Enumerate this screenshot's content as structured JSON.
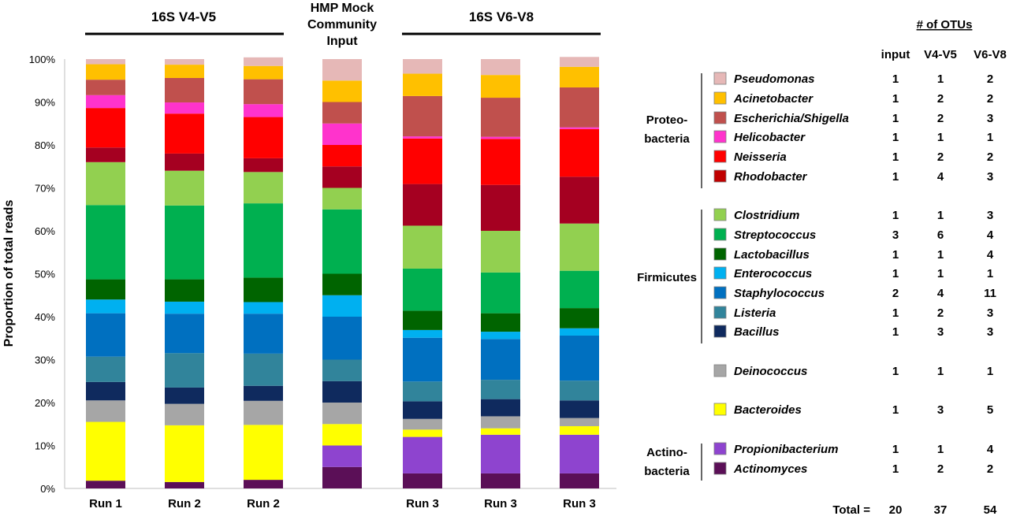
{
  "chart_data": {
    "type": "bar",
    "stacked": true,
    "ylabel": "Proportion of total reads",
    "ylim": [
      0,
      100
    ],
    "y_ticks": [
      "0%",
      "10%",
      "20%",
      "30%",
      "40%",
      "50%",
      "60%",
      "70%",
      "80%",
      "90%",
      "100%"
    ],
    "group_titles": {
      "v4v5": "16S V4-V5",
      "hmp": [
        "HMP Mock",
        "Community",
        "Input"
      ],
      "v6v8": "16S V6-V8"
    },
    "categories": [
      "Run 1",
      "Run 2",
      "Run 2",
      "",
      "Run 3",
      "Run 3",
      "Run 3"
    ],
    "series": [
      {
        "name": "Actinomyces",
        "color": "#5B0F57",
        "values": [
          1.8,
          1.5,
          2.0,
          5.0,
          3.5,
          3.5,
          3.5
        ]
      },
      {
        "name": "Propionibacterium",
        "color": "#8E44CF",
        "values": [
          0,
          0,
          0,
          5.0,
          8.5,
          9.0,
          9.0
        ]
      },
      {
        "name": "Bacteroides",
        "color": "#FFFF00",
        "values": [
          13.7,
          13.2,
          12.8,
          5.0,
          1.7,
          1.5,
          2.0
        ]
      },
      {
        "name": "Deinococcus",
        "color": "#A6A6A6",
        "values": [
          5.0,
          5.0,
          5.6,
          5.0,
          2.5,
          2.8,
          1.9
        ]
      },
      {
        "name": "Bacillus",
        "color": "#0F2A5E",
        "values": [
          4.3,
          3.8,
          3.5,
          5.0,
          4.1,
          4.0,
          4.1
        ]
      },
      {
        "name": "Listeria",
        "color": "#31849B",
        "values": [
          5.9,
          8.0,
          7.5,
          5.0,
          4.6,
          4.5,
          4.6
        ]
      },
      {
        "name": "Staphylococcus",
        "color": "#0070C0",
        "values": [
          10.1,
          9.2,
          9.3,
          10.0,
          10.2,
          9.5,
          10.5
        ]
      },
      {
        "name": "Enterococcus",
        "color": "#00B0F0",
        "values": [
          3.2,
          2.8,
          2.7,
          5.0,
          1.8,
          1.7,
          1.7
        ]
      },
      {
        "name": "Lactobacillus",
        "color": "#006400",
        "values": [
          4.7,
          5.2,
          5.7,
          5.0,
          4.5,
          4.3,
          4.7
        ]
      },
      {
        "name": "Streptococcus",
        "color": "#00B050",
        "values": [
          17.3,
          17.2,
          17.3,
          15.0,
          9.8,
          9.5,
          8.7
        ]
      },
      {
        "name": "Clostridium",
        "color": "#92D050",
        "values": [
          10.0,
          8.1,
          7.3,
          5.0,
          10.0,
          9.7,
          11.0
        ]
      },
      {
        "name": "Rhodobacter",
        "color": "#A50021",
        "values": [
          3.4,
          4.0,
          3.2,
          5.0,
          9.7,
          10.7,
          10.9
        ]
      },
      {
        "name": "Neisseria",
        "color": "#FF0000",
        "values": [
          9.2,
          9.3,
          9.6,
          5.0,
          10.6,
          10.7,
          11.1
        ]
      },
      {
        "name": "Helicobacter",
        "color": "#FF33CC",
        "values": [
          3.0,
          2.6,
          3.0,
          5.0,
          0.5,
          0.5,
          0.4
        ]
      },
      {
        "name": "Escherichia/Shigella",
        "color": "#C0504D",
        "values": [
          3.6,
          5.7,
          5.8,
          5.0,
          9.4,
          9.1,
          9.3
        ]
      },
      {
        "name": "Acinetobacter",
        "color": "#FFC000",
        "values": [
          3.6,
          3.1,
          3.1,
          5.0,
          5.2,
          5.3,
          4.8
        ]
      },
      {
        "name": "Pseudomonas",
        "color": "#E6B8B7",
        "values": [
          1.2,
          1.3,
          2.0,
          5.0,
          3.4,
          3.7,
          2.3
        ]
      }
    ]
  },
  "otu_table": {
    "title": "# of OTUs",
    "columns": [
      "input",
      "V4-V5",
      "V6-V8"
    ],
    "groups": [
      {
        "phylum": [
          "Proteo-",
          "bacteria"
        ],
        "rows": [
          {
            "name": "Pseudomonas",
            "color": "#E6B8B7",
            "counts": [
              "1",
              "1",
              "2"
            ]
          },
          {
            "name": "Acinetobacter",
            "color": "#FFC000",
            "counts": [
              "1",
              "2",
              "2"
            ]
          },
          {
            "name": "Escherichia/Shigella",
            "color": "#C0504D",
            "counts": [
              "1",
              "2",
              "3"
            ]
          },
          {
            "name": "Helicobacter",
            "color": "#FF33CC",
            "counts": [
              "1",
              "1",
              "1"
            ]
          },
          {
            "name": "Neisseria",
            "color": "#FF0000",
            "counts": [
              "1",
              "2",
              "2"
            ]
          },
          {
            "name": "Rhodobacter",
            "color": "#C00000",
            "counts": [
              "1",
              "4",
              "3"
            ]
          }
        ]
      },
      {
        "phylum": [
          "Firmicutes"
        ],
        "rows": [
          {
            "name": "Clostridium",
            "color": "#92D050",
            "counts": [
              "1",
              "1",
              "3"
            ]
          },
          {
            "name": "Streptococcus",
            "color": "#00B050",
            "counts": [
              "3",
              "6",
              "4"
            ]
          },
          {
            "name": "Lactobacillus",
            "color": "#006400",
            "counts": [
              "1",
              "1",
              "4"
            ]
          },
          {
            "name": "Enterococcus",
            "color": "#00B0F0",
            "counts": [
              "1",
              "1",
              "1"
            ]
          },
          {
            "name": "Staphylococcus",
            "color": "#0070C0",
            "counts": [
              "2",
              "4",
              "11"
            ]
          },
          {
            "name": "Listeria",
            "color": "#31849B",
            "counts": [
              "1",
              "2",
              "3"
            ]
          },
          {
            "name": "Bacillus",
            "color": "#0F2A5E",
            "counts": [
              "1",
              "3",
              "3"
            ]
          }
        ]
      },
      {
        "phylum": [],
        "rows": [
          {
            "name": "Deinococcus",
            "color": "#A6A6A6",
            "counts": [
              "1",
              "1",
              "1"
            ]
          }
        ]
      },
      {
        "phylum": [],
        "rows": [
          {
            "name": "Bacteroides",
            "color": "#FFFF00",
            "counts": [
              "1",
              "3",
              "5"
            ]
          }
        ]
      },
      {
        "phylum": [
          "Actino-",
          "bacteria"
        ],
        "rows": [
          {
            "name": "Propionibacterium",
            "color": "#8E44CF",
            "counts": [
              "1",
              "1",
              "4"
            ]
          },
          {
            "name": "Actinomyces",
            "color": "#5B0F57",
            "counts": [
              "1",
              "2",
              "2"
            ]
          }
        ]
      }
    ],
    "total_label": "Total =",
    "totals": [
      "20",
      "37",
      "54"
    ]
  }
}
